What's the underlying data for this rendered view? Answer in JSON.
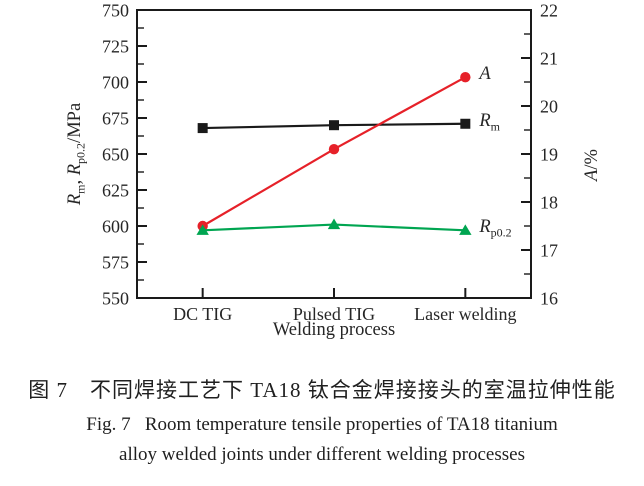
{
  "figure": {
    "caption_zh": "图 7　不同焊接工艺下 TA18 钛合金焊接接头的室温拉伸性能",
    "caption_en_line1": "Fig. 7   Room temperature tensile properties of TA18 titanium",
    "caption_en_line2": "alloy welded joints under different welding processes"
  },
  "chart_data": {
    "type": "line",
    "title": "",
    "categories": [
      "DC TIG",
      "Pulsed TIG",
      "Laser welding"
    ],
    "xlabel": "Welding process",
    "grid": false,
    "legend_position": "labels-right-of-last-point",
    "axis_color": "#1a1a1a",
    "text_color": "#262626",
    "left_axis": {
      "label_text": "Rm, Rp0.2/MPa",
      "label_parts": {
        "sym1": "R",
        "sub1": "m",
        "sep": ", ",
        "sym2": "R",
        "sub2": "p0.2",
        "unit": "/MPa"
      },
      "min": 550,
      "max": 750,
      "major_step": 25,
      "minor_step": 12.5,
      "ticks": [
        550,
        575,
        600,
        625,
        650,
        675,
        700,
        725,
        750
      ]
    },
    "right_axis": {
      "label_text": "A/%",
      "label_parts": {
        "sym": "A",
        "unit": "/%"
      },
      "min": 16,
      "max": 22,
      "major_step": 1,
      "minor_step": 0.5,
      "ticks": [
        16,
        17,
        18,
        19,
        20,
        21,
        22
      ]
    },
    "series": [
      {
        "name": "Rm",
        "axis": "left",
        "marker": "square",
        "color": "#1a1a1a",
        "values": [
          668,
          670,
          671
        ],
        "label_parts": {
          "sym": "R",
          "sub": "m"
        }
      },
      {
        "name": "A",
        "axis": "right",
        "marker": "circle",
        "color": "#e62129",
        "values": [
          17.5,
          19.1,
          20.6
        ],
        "label_parts": {
          "sym": "A"
        }
      },
      {
        "name": "Rp0.2",
        "axis": "left",
        "marker": "triangle",
        "color": "#00a551",
        "values": [
          597,
          601,
          597
        ],
        "label_parts": {
          "sym": "R",
          "sub": "p0.2"
        }
      }
    ]
  }
}
